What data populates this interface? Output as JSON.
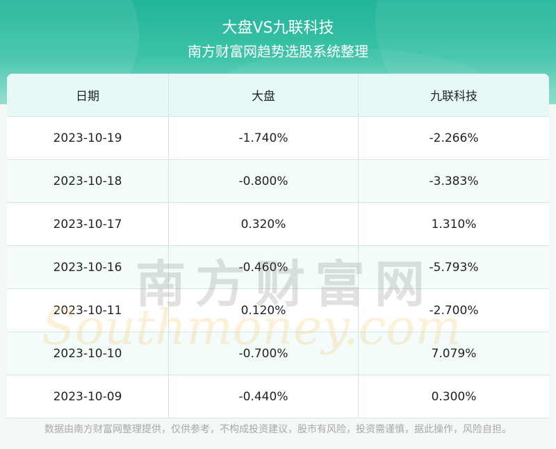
{
  "header": {
    "title": "大盘VS九联科技",
    "subtitle": "南方财富网趋势选股系统整理"
  },
  "table": {
    "columns": [
      "日期",
      "大盘",
      "九联科技"
    ],
    "rows": [
      [
        "2023-10-19",
        "-1.740%",
        "-2.266%"
      ],
      [
        "2023-10-18",
        "-0.800%",
        "-3.383%"
      ],
      [
        "2023-10-17",
        "0.320%",
        "1.310%"
      ],
      [
        "2023-10-16",
        "-0.460%",
        "-5.793%"
      ],
      [
        "2023-10-11",
        "0.120%",
        "-2.700%"
      ],
      [
        "2023-10-10",
        "-0.700%",
        "7.079%"
      ],
      [
        "2023-10-09",
        "-0.440%",
        "0.300%"
      ]
    ]
  },
  "watermark": {
    "cn": "南方财富网",
    "en": "Southmoney.com"
  },
  "footer": {
    "disclaimer": "数据由南方财富网整理提供，仅供参考，不构成投资建议，股市有风险，投资需谨慎，据此操作，风险自担。"
  }
}
